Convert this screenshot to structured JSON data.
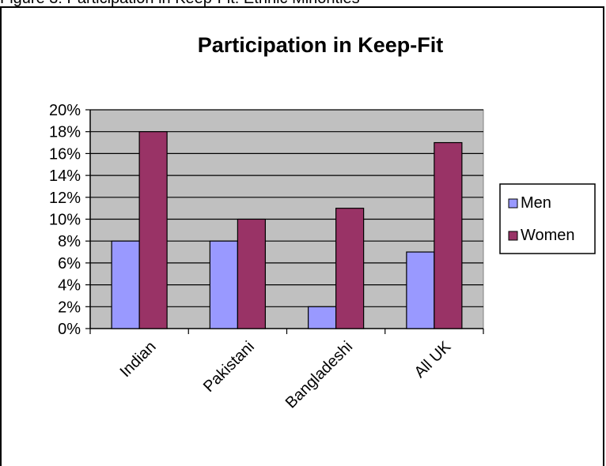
{
  "caption": "Figure 3: Participation in Keep-Fit: Ethnic Minorities",
  "chart_data": {
    "type": "bar",
    "title": "Participation in Keep-Fit",
    "categories": [
      "Indian",
      "Pakistani",
      "Bangladeshi",
      "All UK"
    ],
    "series": [
      {
        "name": "Men",
        "values": [
          8,
          8,
          2,
          7
        ],
        "color": "#9999ff"
      },
      {
        "name": "Women",
        "values": [
          18,
          10,
          11,
          17
        ],
        "color": "#993366"
      }
    ],
    "ylim": [
      0,
      20
    ],
    "yticks": [
      "0%",
      "2%",
      "4%",
      "6%",
      "8%",
      "10%",
      "12%",
      "14%",
      "16%",
      "18%",
      "20%"
    ],
    "grid": true,
    "plot_background": "#c0c0c0",
    "legend": "right"
  }
}
